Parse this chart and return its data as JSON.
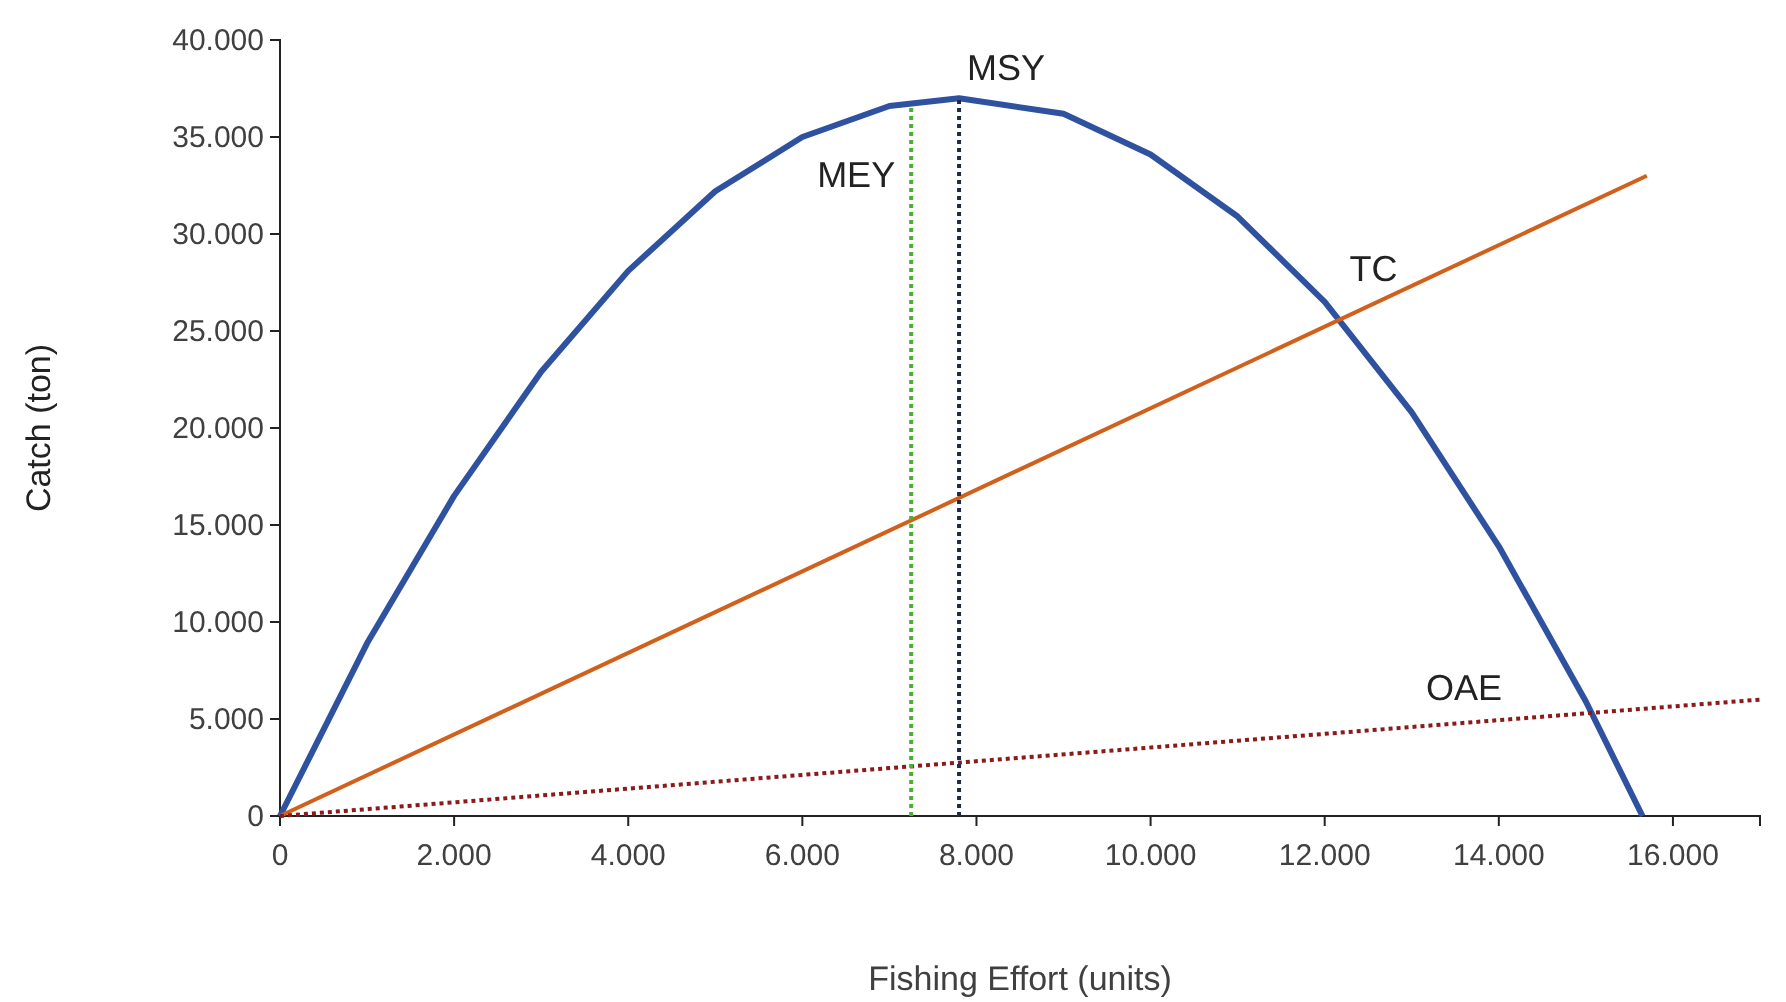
{
  "chart_data": {
    "type": "line",
    "xlabel": "Fishing Effort (units)",
    "ylabel": "Catch (ton)",
    "xlim": [
      0,
      17000
    ],
    "ylim": [
      0,
      40000
    ],
    "xticks": [
      0,
      {
        "value": 2000,
        "label": "2.000"
      },
      {
        "value": 4000,
        "label": "4.000"
      },
      {
        "value": 6000,
        "label": "6.000"
      },
      {
        "value": 8000,
        "label": "8.000"
      },
      {
        "value": 10000,
        "label": "10.000"
      },
      {
        "value": 12000,
        "label": "12.000"
      },
      {
        "value": 14000,
        "label": "14.000"
      },
      {
        "value": 16000,
        "label": "16.000"
      }
    ],
    "yticks": [
      0,
      {
        "value": 5000,
        "label": "5.000"
      },
      {
        "value": 10000,
        "label": "10.000"
      },
      {
        "value": 15000,
        "label": "15.000"
      },
      {
        "value": 20000,
        "label": "20.000"
      },
      {
        "value": 25000,
        "label": "25.000"
      },
      {
        "value": 30000,
        "label": "30.000"
      },
      {
        "value": 35000,
        "label": "35.000"
      },
      {
        "value": 40000,
        "label": "40.000"
      }
    ],
    "grid": false,
    "marker": "none",
    "series": [
      {
        "color": "#2f52a0",
        "line_style": "solid",
        "x": [
          0,
          1000,
          2000,
          3000,
          4000,
          5000,
          6000,
          7000,
          7800,
          9000,
          10000,
          11000,
          12000,
          13000,
          14000,
          15000,
          15650
        ],
        "values": [
          0,
          8900,
          16500,
          22900,
          28100,
          32200,
          35000,
          36600,
          37000,
          36200,
          34100,
          30900,
          26500,
          20800,
          13900,
          5900,
          0
        ]
      },
      {
        "name": "TC",
        "color": "#d0601c",
        "line_style": "solid",
        "x": [
          0,
          15700
        ],
        "values": [
          0,
          33000
        ]
      },
      {
        "name": "OAE",
        "color": "#8b1a1a",
        "line_style": "dotted",
        "x": [
          0,
          17000
        ],
        "values": [
          0,
          6000
        ]
      },
      {
        "name": "MEY",
        "color": "#4caf2f",
        "line_style": "dotted",
        "x": [
          7250,
          7250
        ],
        "values": [
          0,
          36500
        ]
      },
      {
        "name": "MSY",
        "color": "#1f2a4a",
        "line_style": "dotted",
        "x": [
          7800,
          7800
        ],
        "values": [
          0,
          37000
        ]
      }
    ]
  }
}
